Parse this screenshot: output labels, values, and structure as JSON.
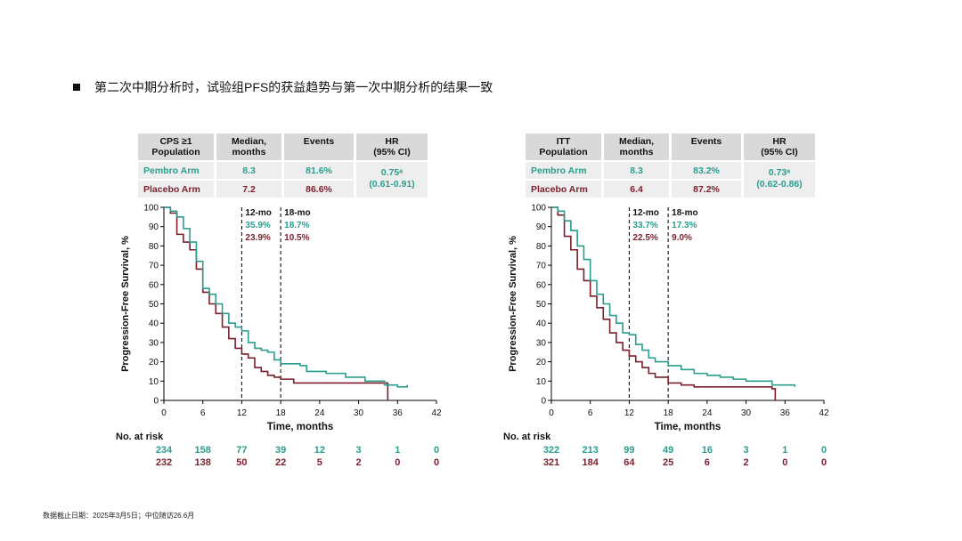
{
  "heading": "第二次中期分析时，试验组PFS的获益趋势与第一次中期分析的结果一致",
  "footnote": "数据截止日期：2025年3月5日；中位随访26.6月",
  "colors": {
    "pembro": "#2a9d8f",
    "placebo": "#7a1f2b",
    "header_bg": "#d9d9d9",
    "row_bg": "#eeeeee"
  },
  "chart_data": [
    {
      "type": "line",
      "subtype": "kaplan-meier",
      "table": {
        "headers": [
          "CPS ≥1 Population",
          "Median, months",
          "Events",
          "HR (95% CI)"
        ],
        "rows": [
          {
            "arm": "Pembro Arm",
            "median": "8.3",
            "events": "81.6%"
          },
          {
            "arm": "Placebo Arm",
            "median": "7.2",
            "events": "86.6%"
          }
        ],
        "hr": "0.75ᵃ",
        "ci": "(0.61-0.91)"
      },
      "ylabel": "Progression-Free Survival, %",
      "xlabel": "Time, months",
      "xlim": [
        0,
        42
      ],
      "ylim": [
        0,
        100
      ],
      "x_ticks": [
        0,
        6,
        12,
        18,
        24,
        30,
        36,
        42
      ],
      "y_ticks": [
        0,
        10,
        20,
        30,
        40,
        50,
        60,
        70,
        80,
        90,
        100
      ],
      "landmarks": [
        {
          "label": "12-mo",
          "x": 12,
          "pembro": "35.9%",
          "placebo": "23.9%"
        },
        {
          "label": "18-mo",
          "x": 18,
          "pembro": "18.7%",
          "placebo": "10.5%"
        }
      ],
      "series": [
        {
          "name": "Pembro Arm",
          "points": [
            [
              0,
              100
            ],
            [
              1,
              98
            ],
            [
              2,
              95
            ],
            [
              3,
              89
            ],
            [
              4,
              82
            ],
            [
              5,
              72
            ],
            [
              6,
              58
            ],
            [
              7,
              55
            ],
            [
              8,
              50
            ],
            [
              9,
              45
            ],
            [
              10,
              40
            ],
            [
              11,
              38
            ],
            [
              12,
              36
            ],
            [
              13,
              30
            ],
            [
              14,
              27
            ],
            [
              15,
              26
            ],
            [
              16,
              25
            ],
            [
              17,
              21
            ],
            [
              18,
              19
            ],
            [
              21,
              18
            ],
            [
              22,
              15
            ],
            [
              25,
              14
            ],
            [
              28,
              12
            ],
            [
              31,
              10
            ],
            [
              34,
              8
            ],
            [
              36,
              7
            ],
            [
              37.5,
              8
            ]
          ]
        },
        {
          "name": "Placebo Arm",
          "points": [
            [
              0,
              100
            ],
            [
              1,
              97
            ],
            [
              2,
              86
            ],
            [
              3,
              82
            ],
            [
              4,
              78
            ],
            [
              5,
              68
            ],
            [
              6,
              56
            ],
            [
              7,
              50
            ],
            [
              8,
              45
            ],
            [
              9,
              38
            ],
            [
              10,
              32
            ],
            [
              11,
              27
            ],
            [
              12,
              24
            ],
            [
              13,
              22
            ],
            [
              14,
              17
            ],
            [
              15,
              15
            ],
            [
              16,
              13
            ],
            [
              17,
              12
            ],
            [
              18,
              11
            ],
            [
              20,
              9
            ],
            [
              34,
              9
            ],
            [
              34.5,
              0
            ]
          ]
        }
      ],
      "risk_table": {
        "label": "No. at risk",
        "times": [
          0,
          6,
          12,
          18,
          24,
          30,
          36,
          42
        ],
        "pembro": [
          "234",
          "158",
          "77",
          "39",
          "12",
          "3",
          "1",
          "0"
        ],
        "placebo": [
          "232",
          "138",
          "50",
          "22",
          "5",
          "2",
          "0",
          "0"
        ]
      }
    },
    {
      "type": "line",
      "subtype": "kaplan-meier",
      "table": {
        "headers": [
          "ITT Population",
          "Median, months",
          "Events",
          "HR (95% CI)"
        ],
        "rows": [
          {
            "arm": "Pembro Arm",
            "median": "8.3",
            "events": "83.2%"
          },
          {
            "arm": "Placebo Arm",
            "median": "6.4",
            "events": "87.2%"
          }
        ],
        "hr": "0.73ᵃ",
        "ci": "(0.62-0.86)"
      },
      "ylabel": "Progression-Free Survival, %",
      "xlabel": "Time, months",
      "xlim": [
        0,
        42
      ],
      "ylim": [
        0,
        100
      ],
      "x_ticks": [
        0,
        6,
        12,
        18,
        24,
        30,
        36,
        42
      ],
      "y_ticks": [
        0,
        10,
        20,
        30,
        40,
        50,
        60,
        70,
        80,
        90,
        100
      ],
      "landmarks": [
        {
          "label": "12-mo",
          "x": 12,
          "pembro": "33.7%",
          "placebo": "22.5%"
        },
        {
          "label": "18-mo",
          "x": 18,
          "pembro": "17.3%",
          "placebo": "9.0%"
        }
      ],
      "series": [
        {
          "name": "Pembro Arm",
          "points": [
            [
              0,
              100
            ],
            [
              1,
              98
            ],
            [
              2,
              93
            ],
            [
              3,
              88
            ],
            [
              4,
              80
            ],
            [
              5,
              73
            ],
            [
              6,
              62
            ],
            [
              7,
              55
            ],
            [
              8,
              50
            ],
            [
              9,
              44
            ],
            [
              10,
              40
            ],
            [
              11,
              35
            ],
            [
              12,
              34
            ],
            [
              13,
              29
            ],
            [
              14,
              26
            ],
            [
              15,
              22
            ],
            [
              16,
              20
            ],
            [
              18,
              18
            ],
            [
              20,
              16
            ],
            [
              22,
              14
            ],
            [
              24,
              13
            ],
            [
              26,
              12
            ],
            [
              28,
              11
            ],
            [
              30,
              10
            ],
            [
              34,
              8
            ],
            [
              37.5,
              7
            ]
          ]
        },
        {
          "name": "Placebo Arm",
          "points": [
            [
              0,
              100
            ],
            [
              1,
              96
            ],
            [
              2,
              85
            ],
            [
              3,
              78
            ],
            [
              4,
              68
            ],
            [
              5,
              62
            ],
            [
              6,
              54
            ],
            [
              7,
              48
            ],
            [
              8,
              42
            ],
            [
              9,
              35
            ],
            [
              10,
              30
            ],
            [
              11,
              26
            ],
            [
              12,
              23
            ],
            [
              13,
              20
            ],
            [
              14,
              17
            ],
            [
              15,
              14
            ],
            [
              16,
              12
            ],
            [
              18,
              9
            ],
            [
              20,
              8
            ],
            [
              22,
              7
            ],
            [
              34,
              6
            ],
            [
              34.5,
              0
            ]
          ]
        }
      ],
      "risk_table": {
        "label": "No. at risk",
        "times": [
          0,
          6,
          12,
          18,
          24,
          30,
          36,
          42
        ],
        "pembro": [
          "322",
          "213",
          "99",
          "49",
          "16",
          "3",
          "1",
          "0"
        ],
        "placebo": [
          "321",
          "184",
          "64",
          "25",
          "6",
          "2",
          "0",
          "0"
        ]
      }
    }
  ]
}
